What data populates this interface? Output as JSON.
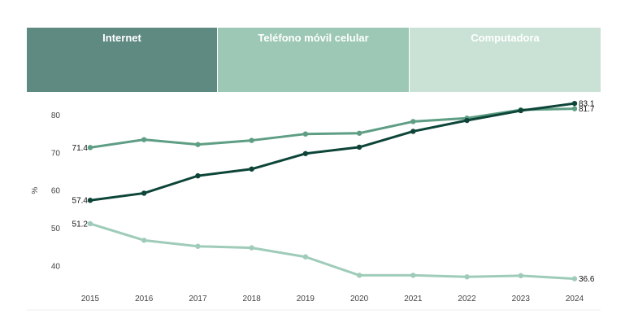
{
  "tabs": [
    {
      "label": "Internet",
      "color": "#5f8a82"
    },
    {
      "label": "Teléfono móvil celular",
      "color": "#9dc8b5"
    },
    {
      "label": "Computadora",
      "color": "#cae2d6"
    }
  ],
  "chart_data": {
    "type": "line",
    "x": [
      "2015",
      "2016",
      "2017",
      "2018",
      "2019",
      "2020",
      "2021",
      "2022",
      "2023",
      "2024"
    ],
    "ylabel": "%",
    "ylim": [
      35,
      84
    ],
    "yticks": [
      40,
      50,
      60,
      70,
      80
    ],
    "grid": false,
    "series": [
      {
        "color": "#5e9e84",
        "values": [
          71.4,
          73.5,
          72.2,
          73.3,
          75.0,
          75.2,
          78.3,
          79.2,
          81.4,
          81.7
        ],
        "start_label": "71.4",
        "end_label": "81.7"
      },
      {
        "color": "#0d4538",
        "values": [
          57.4,
          59.3,
          63.9,
          65.7,
          69.8,
          71.5,
          75.7,
          78.6,
          81.2,
          83.1
        ],
        "start_label": "57.4",
        "end_label": "83.1"
      },
      {
        "color": "#9fccb9",
        "values": [
          51.2,
          46.8,
          45.2,
          44.8,
          42.4,
          37.5,
          37.5,
          37.1,
          37.4,
          36.6
        ],
        "start_label": "51.2",
        "end_label": "36.6"
      }
    ]
  }
}
